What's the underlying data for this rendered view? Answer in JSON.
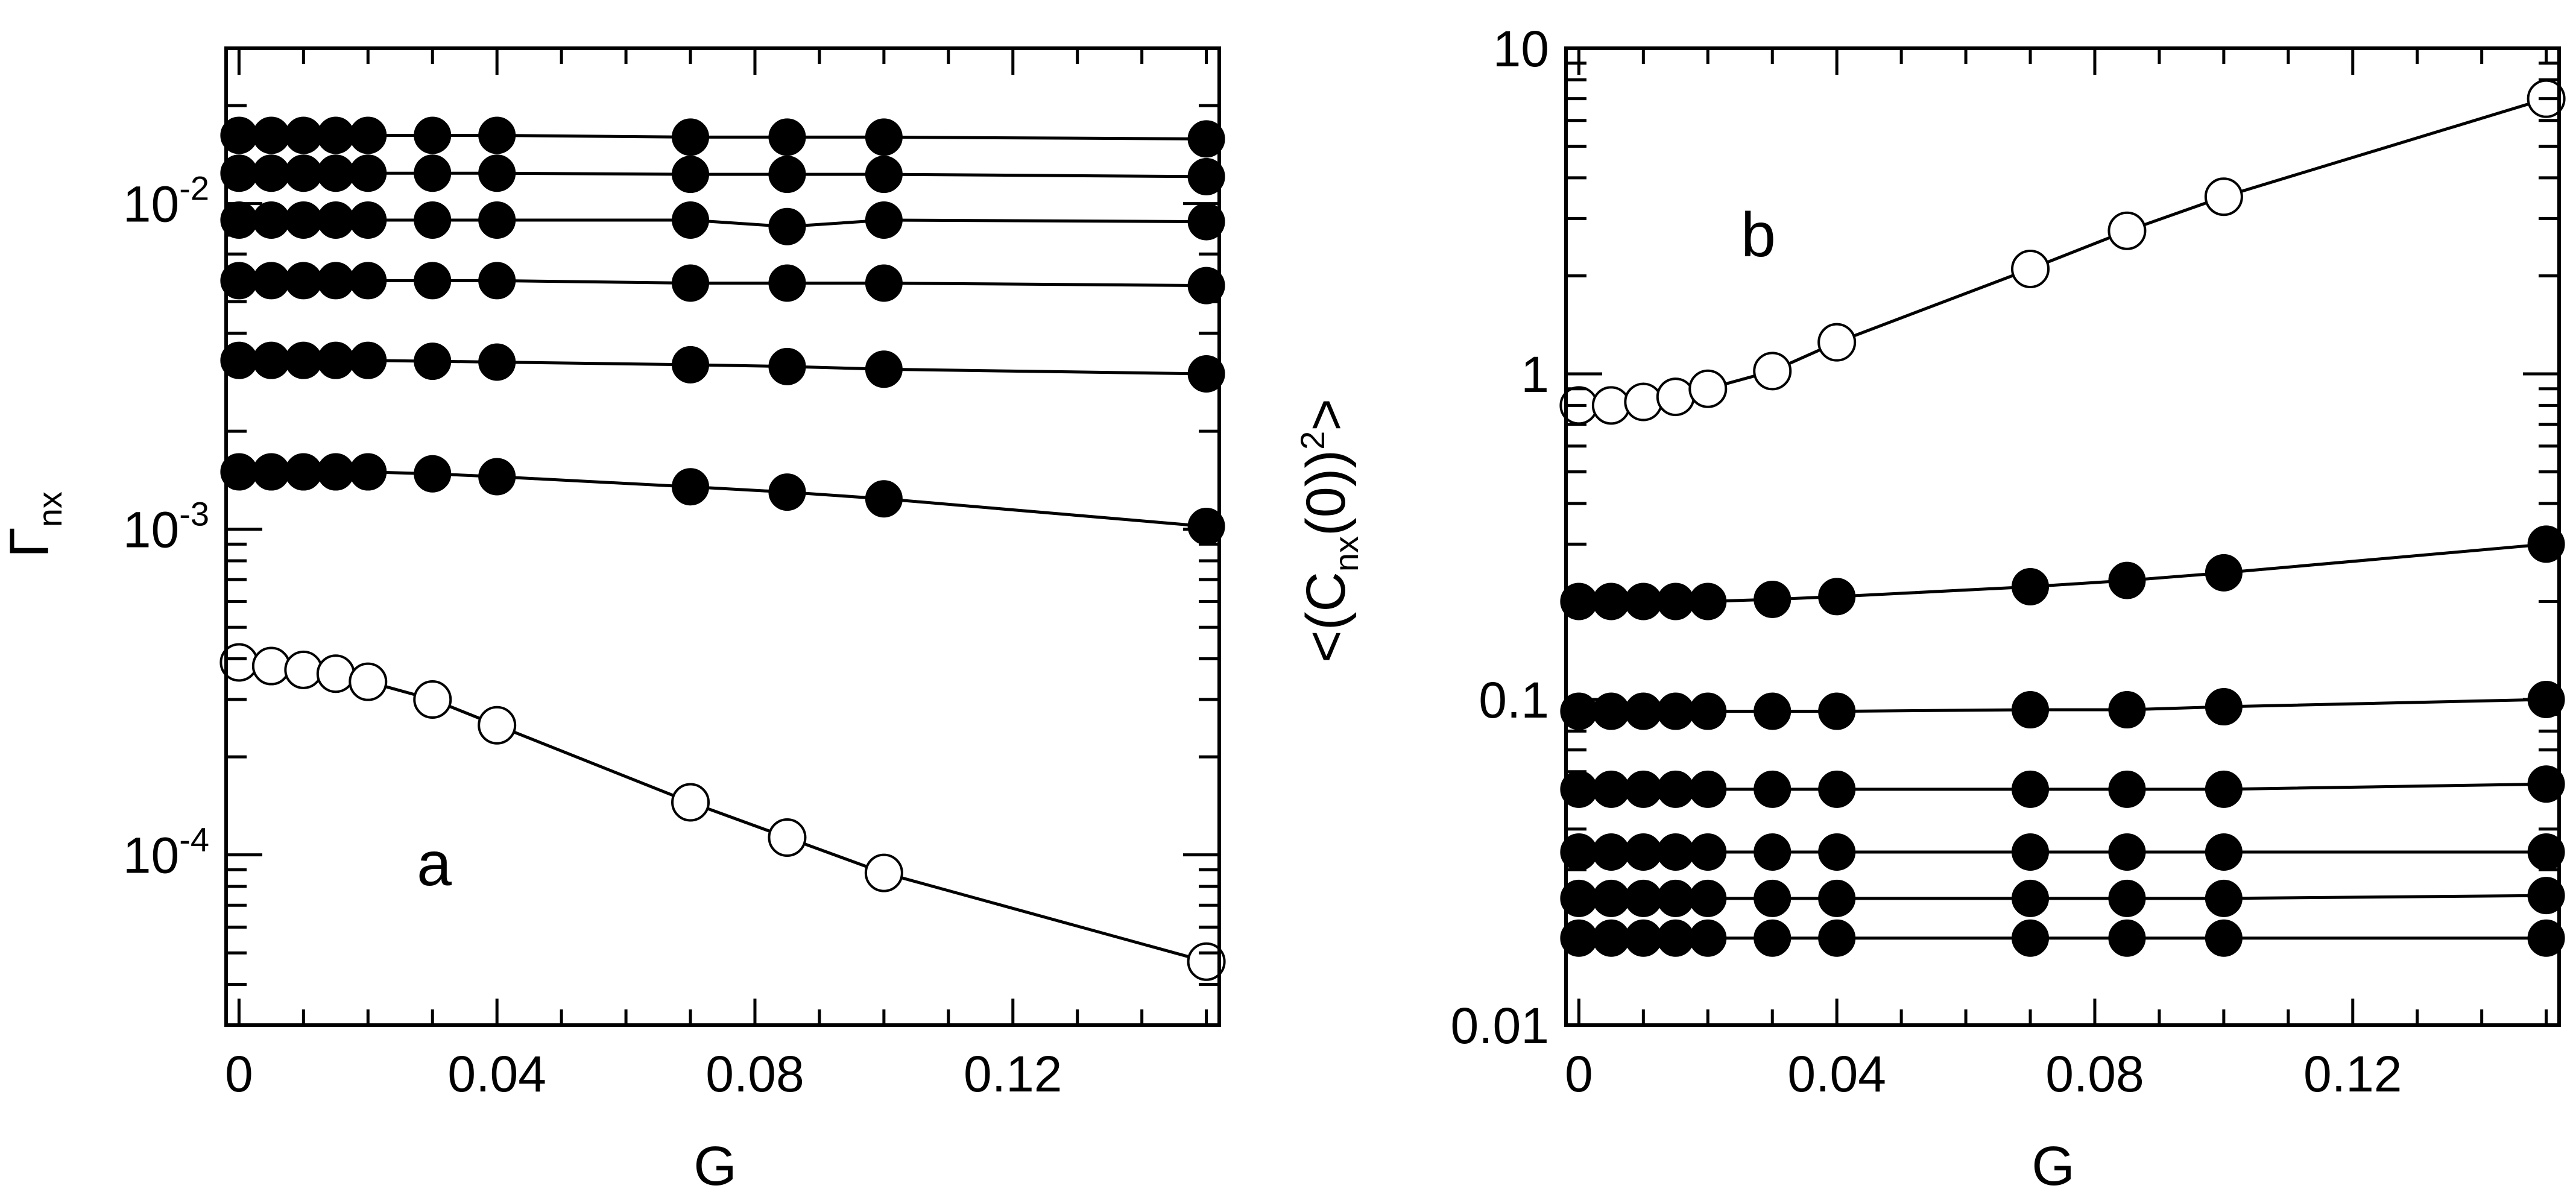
{
  "chart_data": [
    {
      "id": "panel_a",
      "type": "scatter",
      "panel_label": "a",
      "xlabel": "G",
      "ylabel": {
        "base": "Γ",
        "subscript": "nx"
      },
      "xscale": "linear",
      "yscale": "log",
      "xlim": [
        -0.002,
        0.152
      ],
      "ylim": [
        3e-05,
        0.03
      ],
      "xticks": [
        0,
        0.04,
        0.08,
        0.12
      ],
      "xtick_labels": [
        "0",
        "0.04",
        "0.08",
        "0.12"
      ],
      "ytick_labels": [
        {
          "value": 0.01,
          "base": "10",
          "exp": "-2"
        },
        {
          "value": 0.001,
          "base": "10",
          "exp": "-3"
        },
        {
          "value": 0.0001,
          "base": "10",
          "exp": "-4"
        }
      ],
      "x": [
        0,
        0.005,
        0.01,
        0.015,
        0.02,
        0.03,
        0.04,
        0.07,
        0.085,
        0.1,
        0.15
      ],
      "series": [
        {
          "name": "open",
          "marker": "open-circle",
          "values": [
            0.00039,
            0.00038,
            0.00037,
            0.00036,
            0.00034,
            0.0003,
            0.00025,
            0.000145,
            0.000113,
            8.8e-05,
            4.7e-05
          ]
        },
        {
          "name": "filled-1",
          "marker": "filled-circle",
          "values": [
            0.0015,
            0.0015,
            0.0015,
            0.0015,
            0.0015,
            0.00148,
            0.00145,
            0.00135,
            0.0013,
            0.00124,
            0.00102
          ]
        },
        {
          "name": "filled-2",
          "marker": "filled-circle",
          "values": [
            0.0033,
            0.0033,
            0.0033,
            0.0033,
            0.0033,
            0.00328,
            0.00326,
            0.0032,
            0.00316,
            0.0031,
            0.003
          ]
        },
        {
          "name": "filled-3",
          "marker": "filled-circle",
          "values": [
            0.0058,
            0.0058,
            0.0058,
            0.0058,
            0.0058,
            0.0058,
            0.0058,
            0.0057,
            0.0057,
            0.0057,
            0.0056
          ]
        },
        {
          "name": "filled-4",
          "marker": "filled-circle",
          "values": [
            0.0089,
            0.0089,
            0.0089,
            0.0089,
            0.0089,
            0.0089,
            0.0089,
            0.0089,
            0.0085,
            0.0089,
            0.0088
          ]
        },
        {
          "name": "filled-5",
          "marker": "filled-circle",
          "values": [
            0.0124,
            0.0124,
            0.0124,
            0.0124,
            0.0124,
            0.0124,
            0.0124,
            0.0123,
            0.0123,
            0.0123,
            0.0121
          ]
        },
        {
          "name": "filled-6",
          "marker": "filled-circle",
          "values": [
            0.0162,
            0.0162,
            0.0162,
            0.0162,
            0.0162,
            0.0162,
            0.0162,
            0.016,
            0.016,
            0.016,
            0.0158
          ]
        }
      ]
    },
    {
      "id": "panel_b",
      "type": "scatter",
      "panel_label": "b",
      "xlabel": "G",
      "ylabel": {
        "prefix": "<(C",
        "subscript": "nx",
        "middle": "(0))",
        "superscript": "2",
        "suffix": ">"
      },
      "xscale": "linear",
      "yscale": "log",
      "xlim": [
        -0.002,
        0.152
      ],
      "ylim": [
        0.01,
        10
      ],
      "xticks": [
        0,
        0.04,
        0.08,
        0.12
      ],
      "xtick_labels": [
        "0",
        "0.04",
        "0.08",
        "0.12"
      ],
      "ytick_labels": [
        {
          "value": 10,
          "label": "10"
        },
        {
          "value": 1,
          "label": "1"
        },
        {
          "value": 0.1,
          "label": "0.1"
        },
        {
          "value": 0.01,
          "label": "0.01"
        }
      ],
      "x": [
        0,
        0.005,
        0.01,
        0.015,
        0.02,
        0.03,
        0.04,
        0.07,
        0.085,
        0.1,
        0.15
      ],
      "series": [
        {
          "name": "open",
          "marker": "open-circle",
          "values": [
            0.8,
            0.8,
            0.82,
            0.85,
            0.9,
            1.02,
            1.25,
            2.1,
            2.75,
            3.5,
            7.0
          ]
        },
        {
          "name": "filled-1",
          "marker": "filled-circle",
          "values": [
            0.2,
            0.2,
            0.2,
            0.2,
            0.2,
            0.203,
            0.207,
            0.222,
            0.232,
            0.245,
            0.3
          ]
        },
        {
          "name": "filled-2",
          "marker": "filled-circle",
          "values": [
            0.092,
            0.092,
            0.092,
            0.092,
            0.092,
            0.092,
            0.092,
            0.093,
            0.093,
            0.095,
            0.1
          ]
        },
        {
          "name": "filled-3",
          "marker": "filled-circle",
          "values": [
            0.053,
            0.053,
            0.053,
            0.053,
            0.053,
            0.053,
            0.053,
            0.053,
            0.053,
            0.053,
            0.055
          ]
        },
        {
          "name": "filled-4",
          "marker": "filled-circle",
          "values": [
            0.034,
            0.034,
            0.034,
            0.034,
            0.034,
            0.034,
            0.034,
            0.034,
            0.034,
            0.034,
            0.034
          ]
        },
        {
          "name": "filled-5",
          "marker": "filled-circle",
          "values": [
            0.0245,
            0.0245,
            0.0245,
            0.0245,
            0.0245,
            0.0245,
            0.0245,
            0.0245,
            0.0245,
            0.0245,
            0.025
          ]
        },
        {
          "name": "filled-6",
          "marker": "filled-circle",
          "values": [
            0.0185,
            0.0185,
            0.0185,
            0.0185,
            0.0185,
            0.0185,
            0.0185,
            0.0185,
            0.0185,
            0.0185,
            0.0185
          ]
        }
      ]
    }
  ]
}
